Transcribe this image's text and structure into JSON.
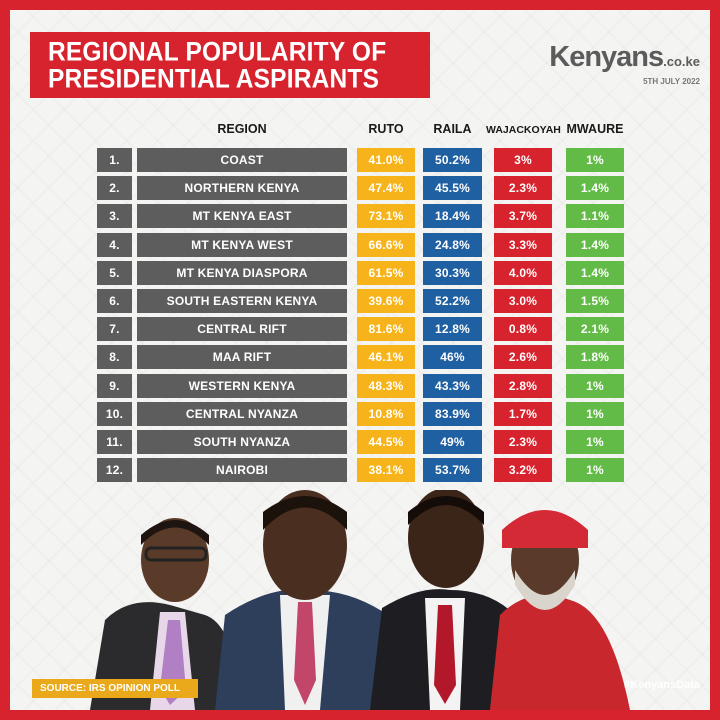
{
  "title_line1": "REGIONAL POPULARITY OF",
  "title_line2": "PRESIDENTIAL ASPIRANTS",
  "brand": {
    "name": "Kenyans",
    "suffix": ".co.ke",
    "date": "5TH JULY 2022"
  },
  "source": "SOURCE: IRS OPINION POLL",
  "hashtag": "#KenyansData",
  "colors": {
    "ruto": "#f6b41a",
    "raila": "#1f60a3",
    "wajackoyah": "#d7232d",
    "mwaure": "#62bb46",
    "region": "#5d5d5d"
  },
  "chart_data": {
    "type": "table",
    "columns": [
      "REGION",
      "RUTO",
      "RAILA",
      "WAJACKOYAH",
      "MWAURE"
    ],
    "rows": [
      {
        "num": "1.",
        "region": "COAST",
        "ruto": "41.0%",
        "raila": "50.2%",
        "wajackoyah": "3%",
        "mwaure": "1%"
      },
      {
        "num": "2.",
        "region": "NORTHERN KENYA",
        "ruto": "47.4%",
        "raila": "45.5%",
        "wajackoyah": "2.3%",
        "mwaure": "1.4%"
      },
      {
        "num": "3.",
        "region": "MT KENYA EAST",
        "ruto": "73.1%",
        "raila": "18.4%",
        "wajackoyah": "3.7%",
        "mwaure": "1.1%"
      },
      {
        "num": "4.",
        "region": "MT KENYA WEST",
        "ruto": "66.6%",
        "raila": "24.8%",
        "wajackoyah": "3.3%",
        "mwaure": "1.4%"
      },
      {
        "num": "5.",
        "region": "MT KENYA DIASPORA",
        "ruto": "61.5%",
        "raila": "30.3%",
        "wajackoyah": "4.0%",
        "mwaure": "1.4%"
      },
      {
        "num": "6.",
        "region": "SOUTH EASTERN KENYA",
        "ruto": "39.6%",
        "raila": "52.2%",
        "wajackoyah": "3.0%",
        "mwaure": "1.5%"
      },
      {
        "num": "7.",
        "region": "CENTRAL RIFT",
        "ruto": "81.6%",
        "raila": "12.8%",
        "wajackoyah": "0.8%",
        "mwaure": "2.1%"
      },
      {
        "num": "8.",
        "region": "MAA RIFT",
        "ruto": "46.1%",
        "raila": "46%",
        "wajackoyah": "2.6%",
        "mwaure": "1.8%"
      },
      {
        "num": "9.",
        "region": "WESTERN KENYA",
        "ruto": "48.3%",
        "raila": "43.3%",
        "wajackoyah": "2.8%",
        "mwaure": "1%"
      },
      {
        "num": "10.",
        "region": "CENTRAL NYANZA",
        "ruto": "10.8%",
        "raila": "83.9%",
        "wajackoyah": "1.7%",
        "mwaure": "1%"
      },
      {
        "num": "11.",
        "region": "SOUTH NYANZA",
        "ruto": "44.5%",
        "raila": "49%",
        "wajackoyah": "2.3%",
        "mwaure": "1%"
      },
      {
        "num": "12.",
        "region": "NAIROBI",
        "ruto": "38.1%",
        "raila": "53.7%",
        "wajackoyah": "3.2%",
        "mwaure": "1%"
      }
    ]
  }
}
